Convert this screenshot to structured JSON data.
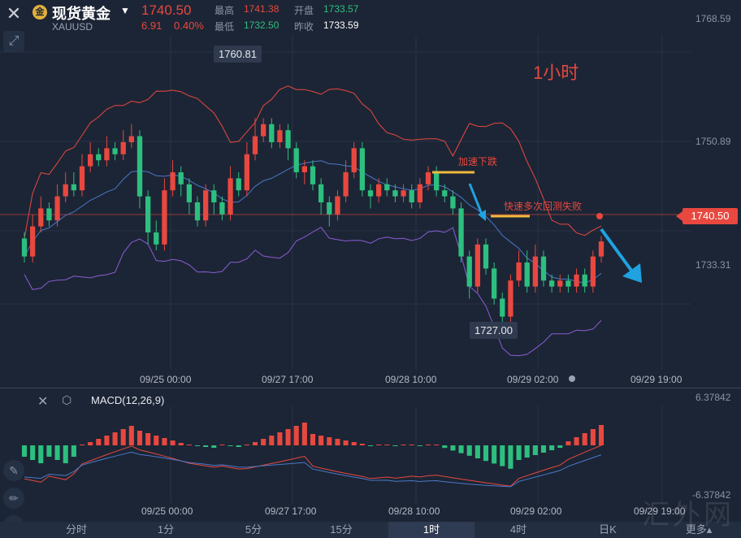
{
  "header": {
    "title": "现货黄金",
    "symbol": "XAUUSD",
    "last_price": "1740.50",
    "change": "6.91",
    "change_pct": "0.40%",
    "high_label": "最高",
    "high": "1741.38",
    "open_label": "开盘",
    "open": "1733.57",
    "low_label": "最低",
    "low": "1732.50",
    "prev_close_label": "昨收",
    "prev_close": "1733.59"
  },
  "main_chart": {
    "y_ticks": [
      "1768.59",
      "1750.89",
      "1733.31"
    ],
    "current_price_tag": "1740.50",
    "callout_high": "1760.81",
    "callout_low": "1727.00",
    "annotation_accel": "加速下跌",
    "annotation_retest": "快速多次回测失败",
    "timeframe_note": "1小时",
    "x_ticks": [
      "09/25 00:00",
      "09/27 17:00",
      "09/28 10:00",
      "09/29 02:00",
      "09/29 19:00"
    ]
  },
  "macd": {
    "label": "MACD(12,26,9)",
    "y_top": "6.37842",
    "y_bottom": "-6.37842",
    "x_ticks": [
      "09/25 00:00",
      "09/27 17:00",
      "09/28 10:00",
      "09/29 02:00",
      "09/29 19:00"
    ]
  },
  "tabs": [
    {
      "label": "分时",
      "active": false
    },
    {
      "label": "1分",
      "active": false
    },
    {
      "label": "5分",
      "active": false
    },
    {
      "label": "15分",
      "active": false
    },
    {
      "label": "1时",
      "active": true
    },
    {
      "label": "4时",
      "active": false
    },
    {
      "label": "日K",
      "active": false
    },
    {
      "label": "更多▴",
      "active": false
    }
  ],
  "watermark": "汇外网",
  "colors": {
    "up": "#e8483f",
    "down": "#2dbf7f",
    "bg": "#1c2535",
    "boll": "#e8483f",
    "mid": "#4a78c8",
    "lower": "#8a5cd6"
  },
  "chart_data": {
    "type": "candlestick",
    "y_range": [
      1722,
      1772
    ],
    "candles": [
      [
        1741,
        1738,
        1742,
        1737
      ],
      [
        1738,
        1743,
        1745,
        1737
      ],
      [
        1743,
        1746,
        1748,
        1742
      ],
      [
        1746,
        1744,
        1747,
        1743
      ],
      [
        1744,
        1748,
        1750,
        1743
      ],
      [
        1748,
        1750,
        1752,
        1747
      ],
      [
        1750,
        1749,
        1752,
        1748
      ],
      [
        1749,
        1753,
        1755,
        1748
      ],
      [
        1753,
        1755,
        1757,
        1752
      ],
      [
        1755,
        1754,
        1756,
        1753
      ],
      [
        1754,
        1756,
        1758,
        1753
      ],
      [
        1756,
        1755,
        1757,
        1754
      ],
      [
        1755,
        1757,
        1759,
        1754
      ],
      [
        1757,
        1758,
        1760,
        1756
      ],
      [
        1758,
        1748,
        1759,
        1746
      ],
      [
        1748,
        1742,
        1749,
        1740
      ],
      [
        1742,
        1740,
        1744,
        1739
      ],
      [
        1740,
        1749,
        1751,
        1739
      ],
      [
        1749,
        1752,
        1754,
        1748
      ],
      [
        1752,
        1750,
        1753,
        1748
      ],
      [
        1750,
        1747,
        1751,
        1745
      ],
      [
        1747,
        1744,
        1748,
        1743
      ],
      [
        1744,
        1749,
        1750,
        1743
      ],
      [
        1749,
        1747,
        1750,
        1745
      ],
      [
        1747,
        1745,
        1748,
        1744
      ],
      [
        1745,
        1751,
        1753,
        1744
      ],
      [
        1751,
        1749,
        1752,
        1748
      ],
      [
        1749,
        1755,
        1757,
        1748
      ],
      [
        1755,
        1758,
        1761,
        1754
      ],
      [
        1758,
        1760,
        1761,
        1757
      ],
      [
        1760,
        1757,
        1761,
        1756
      ],
      [
        1757,
        1759,
        1760,
        1756
      ],
      [
        1759,
        1756,
        1760,
        1754
      ],
      [
        1756,
        1752,
        1757,
        1751
      ],
      [
        1752,
        1753,
        1754,
        1750
      ],
      [
        1753,
        1750,
        1754,
        1749
      ],
      [
        1750,
        1747,
        1751,
        1745
      ],
      [
        1747,
        1745,
        1748,
        1743
      ],
      [
        1745,
        1748,
        1749,
        1744
      ],
      [
        1748,
        1752,
        1754,
        1747
      ],
      [
        1752,
        1756,
        1757,
        1751
      ],
      [
        1756,
        1749,
        1757,
        1748
      ],
      [
        1749,
        1748,
        1750,
        1746
      ],
      [
        1748,
        1750,
        1751,
        1747
      ],
      [
        1750,
        1749,
        1751,
        1748
      ],
      [
        1749,
        1748,
        1750,
        1747
      ],
      [
        1748,
        1749,
        1750,
        1747
      ],
      [
        1749,
        1747,
        1750,
        1746
      ],
      [
        1747,
        1750,
        1751,
        1746
      ],
      [
        1750,
        1752,
        1753,
        1749
      ],
      [
        1752,
        1749,
        1753,
        1748
      ],
      [
        1749,
        1748,
        1750,
        1747
      ],
      [
        1748,
        1746,
        1749,
        1745
      ],
      [
        1746,
        1738,
        1747,
        1737
      ],
      [
        1738,
        1733,
        1739,
        1731
      ],
      [
        1733,
        1740,
        1741,
        1732
      ],
      [
        1740,
        1736,
        1741,
        1735
      ],
      [
        1736,
        1731,
        1737,
        1730
      ],
      [
        1731,
        1728,
        1732,
        1727
      ],
      [
        1728,
        1734,
        1735,
        1727
      ],
      [
        1734,
        1737,
        1739,
        1733
      ],
      [
        1737,
        1733,
        1739,
        1732
      ],
      [
        1733,
        1738,
        1740,
        1732
      ],
      [
        1738,
        1734,
        1739,
        1733
      ],
      [
        1734,
        1733,
        1735,
        1732
      ],
      [
        1733,
        1734,
        1735,
        1732
      ],
      [
        1734,
        1733,
        1735,
        1732
      ],
      [
        1733,
        1735,
        1736,
        1732
      ],
      [
        1735,
        1733,
        1736,
        1732
      ],
      [
        1733,
        1738,
        1739,
        1732
      ],
      [
        1738,
        1740.5,
        1741.4,
        1737
      ]
    ]
  }
}
